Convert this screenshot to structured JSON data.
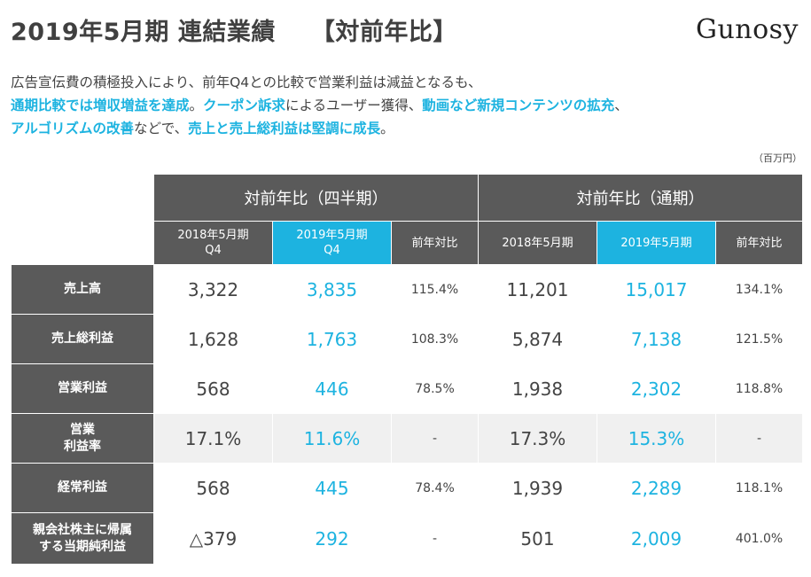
{
  "header": {
    "title": "2019年5月期 連結業績",
    "title_bracket": "【対前年比】",
    "logo": "Gunosy"
  },
  "summary": {
    "line1": "広告宣伝費の積極投入により、前年Q4との比較で営業利益は減益となるも、",
    "line2_hl1": "通期比較では増収増益を達成",
    "line2_t1": "。",
    "line2_hl2": "クーポン訴求",
    "line2_t2": "によるユーザー獲得、",
    "line2_hl3": "動画など新規コンテンツの拡充",
    "line2_t3": "、",
    "line3_hl1": "アルゴリズムの改善",
    "line3_t1": "などで、",
    "line3_hl2": "売上と売上総利益は堅調に成長",
    "line3_t2": "。"
  },
  "unit": "（百万円）",
  "table": {
    "group_quarter": "対前年比（四半期）",
    "group_full": "対前年比（通期）",
    "sub_q_prev_line1": "2018年5月期",
    "sub_q_prev_line2": "Q4",
    "sub_q_cur_line1": "2019年5月期",
    "sub_q_cur_line2": "Q4",
    "sub_q_yoy": "前年対比",
    "sub_f_prev": "2018年5月期",
    "sub_f_cur": "2019年5月期",
    "sub_f_yoy": "前年対比",
    "rows": [
      {
        "label1": "売上高",
        "label2": "",
        "q_prev": "3,322",
        "q_cur": "3,835",
        "q_yoy": "115.4%",
        "f_prev": "11,201",
        "f_cur": "15,017",
        "f_yoy": "134.1%"
      },
      {
        "label1": "売上総利益",
        "label2": "",
        "q_prev": "1,628",
        "q_cur": "1,763",
        "q_yoy": "108.3%",
        "f_prev": "5,874",
        "f_cur": "7,138",
        "f_yoy": "121.5%"
      },
      {
        "label1": "営業利益",
        "label2": "",
        "q_prev": "568",
        "q_cur": "446",
        "q_yoy": "78.5%",
        "f_prev": "1,938",
        "f_cur": "2,302",
        "f_yoy": "118.8%"
      },
      {
        "label1": "営業",
        "label2": "利益率",
        "q_prev": "17.1%",
        "q_cur": "11.6%",
        "q_yoy": "-",
        "f_prev": "17.3%",
        "f_cur": "15.3%",
        "f_yoy": "-"
      },
      {
        "label1": "経常利益",
        "label2": "",
        "q_prev": "568",
        "q_cur": "445",
        "q_yoy": "78.4%",
        "f_prev": "1,939",
        "f_cur": "2,289",
        "f_yoy": "118.1%"
      },
      {
        "label1": "親会社株主に帰属",
        "label2": "する当期純利益",
        "q_prev": "△379",
        "q_cur": "292",
        "q_yoy": "-",
        "f_prev": "501",
        "f_cur": "2,009",
        "f_yoy": "401.0%"
      }
    ]
  },
  "colors": {
    "accent": "#1db3e0",
    "header_gray": "#5a5a5a",
    "alt_row": "#f0f0f0"
  }
}
